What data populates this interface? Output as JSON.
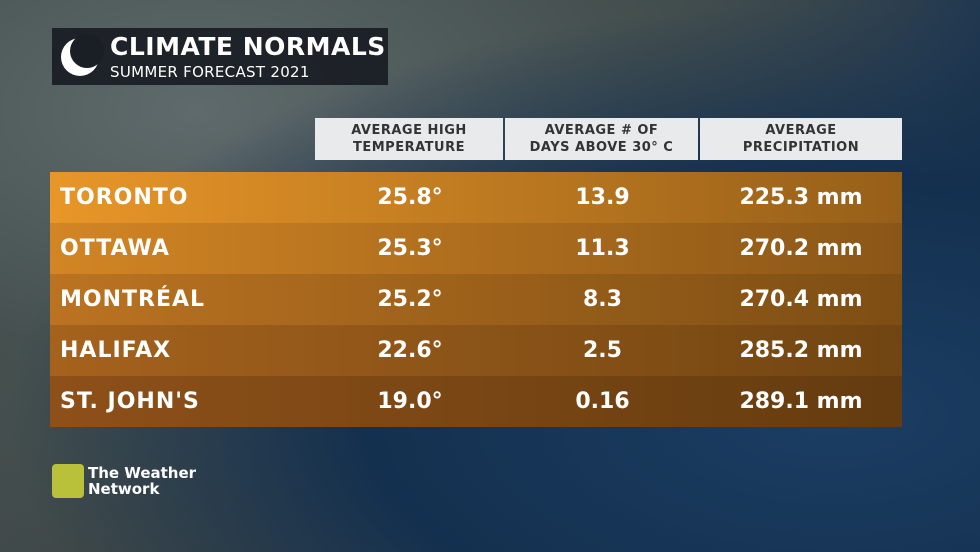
{
  "header": {
    "title": "CLIMATE NORMALS",
    "subtitle": "SUMMER FORECAST 2021"
  },
  "table": {
    "columns": [
      "AVERAGE HIGH\nTEMPERATURE",
      "AVERAGE # OF\nDAYS ABOVE 30° C",
      "AVERAGE\nPRECIPITATION"
    ],
    "rows": [
      [
        "TORONTO",
        "25.8°",
        "13.9",
        "225.3 mm"
      ],
      [
        "OTTAWA",
        "25.3°",
        "11.3",
        "270.2 mm"
      ],
      [
        "MONTRÉAL",
        "25.2°",
        "8.3",
        "270.4 mm"
      ],
      [
        "HALIFAX",
        "22.6°",
        "2.5",
        "285.2 mm"
      ],
      [
        "ST. JOHN'S",
        "19.0°",
        "0.16",
        "289.1 mm"
      ]
    ]
  },
  "logo": {
    "name": "The Weather\nNetwork"
  }
}
